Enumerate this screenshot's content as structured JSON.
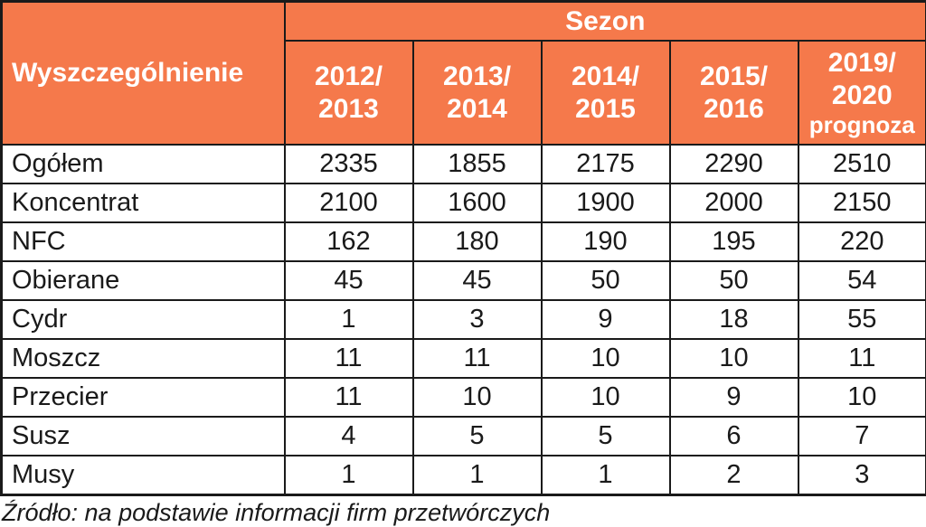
{
  "table": {
    "corner_header": "Wyszczególnienie",
    "group_header": "Sezon",
    "season_columns": [
      {
        "label": "2012/\n2013",
        "note": ""
      },
      {
        "label": "2013/\n2014",
        "note": ""
      },
      {
        "label": "2014/\n2015",
        "note": ""
      },
      {
        "label": "2015/\n2016",
        "note": ""
      },
      {
        "label": "2019/\n2020",
        "note": "prognoza"
      }
    ],
    "rows": [
      {
        "label": "Ogółem",
        "values": [
          "2335",
          "1855",
          "2175",
          "2290",
          "2510"
        ]
      },
      {
        "label": "Koncentrat",
        "values": [
          "2100",
          "1600",
          "1900",
          "2000",
          "2150"
        ]
      },
      {
        "label": "NFC",
        "values": [
          "162",
          "180",
          "190",
          "195",
          "220"
        ]
      },
      {
        "label": "Obierane",
        "values": [
          "45",
          "45",
          "50",
          "50",
          "54"
        ]
      },
      {
        "label": "Cydr",
        "values": [
          "1",
          "3",
          "9",
          "18",
          "55"
        ]
      },
      {
        "label": "Moszcz",
        "values": [
          "11",
          "11",
          "10",
          "10",
          "11"
        ]
      },
      {
        "label": "Przecier",
        "values": [
          "11",
          "10",
          "10",
          "9",
          "10"
        ]
      },
      {
        "label": "Susz",
        "values": [
          "4",
          "5",
          "5",
          "6",
          "7"
        ]
      },
      {
        "label": "Musy",
        "values": [
          "1",
          "1",
          "1",
          "2",
          "3"
        ]
      }
    ]
  },
  "source_note": "Źródło: na podstawie informacji firm przetwórczych",
  "colors": {
    "header_bg": "#F5794B",
    "header_text": "#FFFFFF",
    "border": "#1A1A1A",
    "body_text": "#1A1A1A"
  }
}
